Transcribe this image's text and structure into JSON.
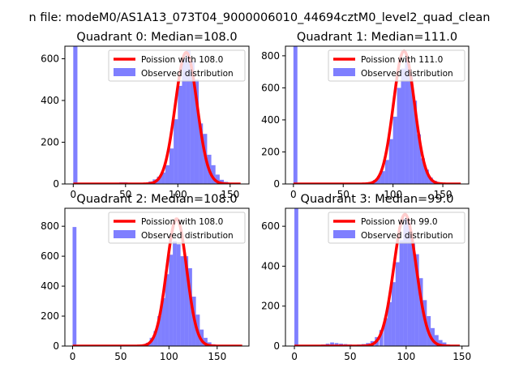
{
  "figure": {
    "suptitle": "n file: modeM0/AS1A13_073T04_9000006010_44694cztM0_level2_quad_clean"
  },
  "chart_data": [
    {
      "type": "histogram",
      "title": "Quadrant 0: Median=108.0",
      "xlim": [
        -8,
        168
      ],
      "ylim": [
        0,
        660
      ],
      "xticks": [
        0,
        50,
        100,
        150
      ],
      "yticks": [
        0,
        200,
        400,
        600
      ],
      "median": 108.0,
      "legend": {
        "position": "top-right",
        "entries": [
          "Poission with 108.0",
          "Observed distribution"
        ]
      },
      "bin_width": 4,
      "bins": [
        [
          0,
          660
        ],
        [
          36,
          4
        ],
        [
          40,
          6
        ],
        [
          44,
          8
        ],
        [
          48,
          8
        ],
        [
          52,
          6
        ],
        [
          56,
          3
        ],
        [
          64,
          3
        ],
        [
          68,
          5
        ],
        [
          72,
          12
        ],
        [
          76,
          22
        ],
        [
          80,
          35
        ],
        [
          84,
          55
        ],
        [
          88,
          90
        ],
        [
          92,
          170
        ],
        [
          96,
          310
        ],
        [
          100,
          470
        ],
        [
          104,
          600
        ],
        [
          108,
          640
        ],
        [
          112,
          590
        ],
        [
          116,
          500
        ],
        [
          120,
          290
        ],
        [
          124,
          240
        ],
        [
          128,
          140
        ],
        [
          132,
          90
        ],
        [
          136,
          45
        ],
        [
          140,
          20
        ],
        [
          144,
          10
        ],
        [
          148,
          6
        ],
        [
          152,
          3
        ],
        [
          156,
          2
        ]
      ],
      "poisson_peak": 630,
      "poisson_range": [
        0,
        160
      ]
    },
    {
      "type": "histogram",
      "title": "Quadrant 1: Median=111.0",
      "xlim": [
        -8,
        176
      ],
      "ylim": [
        0,
        860
      ],
      "xticks": [
        0,
        50,
        100,
        150
      ],
      "yticks": [
        0,
        200,
        400,
        600,
        800
      ],
      "median": 111.0,
      "legend": {
        "position": "top-right",
        "entries": [
          "Poission with 111.0",
          "Observed distribution"
        ]
      },
      "bin_width": 4,
      "bins": [
        [
          0,
          860
        ],
        [
          72,
          5
        ],
        [
          76,
          12
        ],
        [
          80,
          25
        ],
        [
          84,
          50
        ],
        [
          88,
          80
        ],
        [
          92,
          150
        ],
        [
          96,
          280
        ],
        [
          100,
          420
        ],
        [
          104,
          600
        ],
        [
          108,
          720
        ],
        [
          112,
          790
        ],
        [
          116,
          680
        ],
        [
          120,
          520
        ],
        [
          124,
          310
        ],
        [
          128,
          160
        ],
        [
          132,
          90
        ],
        [
          136,
          40
        ],
        [
          140,
          20
        ],
        [
          144,
          8
        ],
        [
          148,
          3
        ],
        [
          152,
          2
        ]
      ],
      "poisson_peak": 830,
      "poisson_range": [
        0,
        168
      ]
    },
    {
      "type": "histogram",
      "title": "Quadrant 2: Median=108.0",
      "xlim": [
        -8,
        183
      ],
      "ylim": [
        0,
        920
      ],
      "xticks": [
        0,
        50,
        100,
        150
      ],
      "yticks": [
        0,
        200,
        400,
        600,
        800
      ],
      "median": 108.0,
      "legend": {
        "position": "top-right",
        "entries": [
          "Poission with 108.0",
          "Observed distribution"
        ]
      },
      "bin_width": 4,
      "bins": [
        [
          0,
          795
        ],
        [
          68,
          5
        ],
        [
          72,
          10
        ],
        [
          76,
          22
        ],
        [
          80,
          55
        ],
        [
          84,
          100
        ],
        [
          88,
          200
        ],
        [
          92,
          320
        ],
        [
          96,
          480
        ],
        [
          100,
          610
        ],
        [
          104,
          700
        ],
        [
          108,
          680
        ],
        [
          112,
          600
        ],
        [
          116,
          600
        ],
        [
          120,
          520
        ],
        [
          124,
          330
        ],
        [
          128,
          210
        ],
        [
          132,
          110
        ],
        [
          136,
          55
        ],
        [
          140,
          25
        ],
        [
          144,
          12
        ],
        [
          148,
          5
        ],
        [
          152,
          2
        ]
      ],
      "poisson_peak": 850,
      "poisson_range": [
        0,
        176
      ]
    },
    {
      "type": "histogram",
      "title": "Quadrant 3: Median=99.0",
      "xlim": [
        -8,
        156
      ],
      "ylim": [
        0,
        690
      ],
      "xticks": [
        0,
        50,
        100,
        150
      ],
      "yticks": [
        0,
        200,
        400,
        600
      ],
      "median": 99.0,
      "legend": {
        "position": "top-right",
        "entries": [
          "Poission with 99.0",
          "Observed distribution"
        ]
      },
      "bin_width": 3.5,
      "bins": [
        [
          0,
          690
        ],
        [
          20,
          5
        ],
        [
          24,
          8
        ],
        [
          28,
          12
        ],
        [
          32,
          18
        ],
        [
          36,
          15
        ],
        [
          40,
          12
        ],
        [
          44,
          10
        ],
        [
          48,
          8
        ],
        [
          52,
          6
        ],
        [
          56,
          8
        ],
        [
          60,
          10
        ],
        [
          64,
          15
        ],
        [
          68,
          25
        ],
        [
          72,
          45
        ],
        [
          76,
          80
        ],
        [
          80,
          140
        ],
        [
          83.5,
          220
        ],
        [
          87,
          320
        ],
        [
          90.5,
          420
        ],
        [
          94,
          530
        ],
        [
          97.5,
          640
        ],
        [
          101,
          620
        ],
        [
          104.5,
          520
        ],
        [
          108,
          460
        ],
        [
          111.5,
          340
        ],
        [
          115,
          230
        ],
        [
          118.5,
          150
        ],
        [
          122,
          90
        ],
        [
          125.5,
          55
        ],
        [
          129,
          30
        ],
        [
          132.5,
          18
        ],
        [
          136,
          8
        ],
        [
          139.5,
          4
        ],
        [
          143,
          2
        ]
      ],
      "poisson_peak": 660,
      "poisson_range": [
        0,
        148
      ]
    }
  ]
}
